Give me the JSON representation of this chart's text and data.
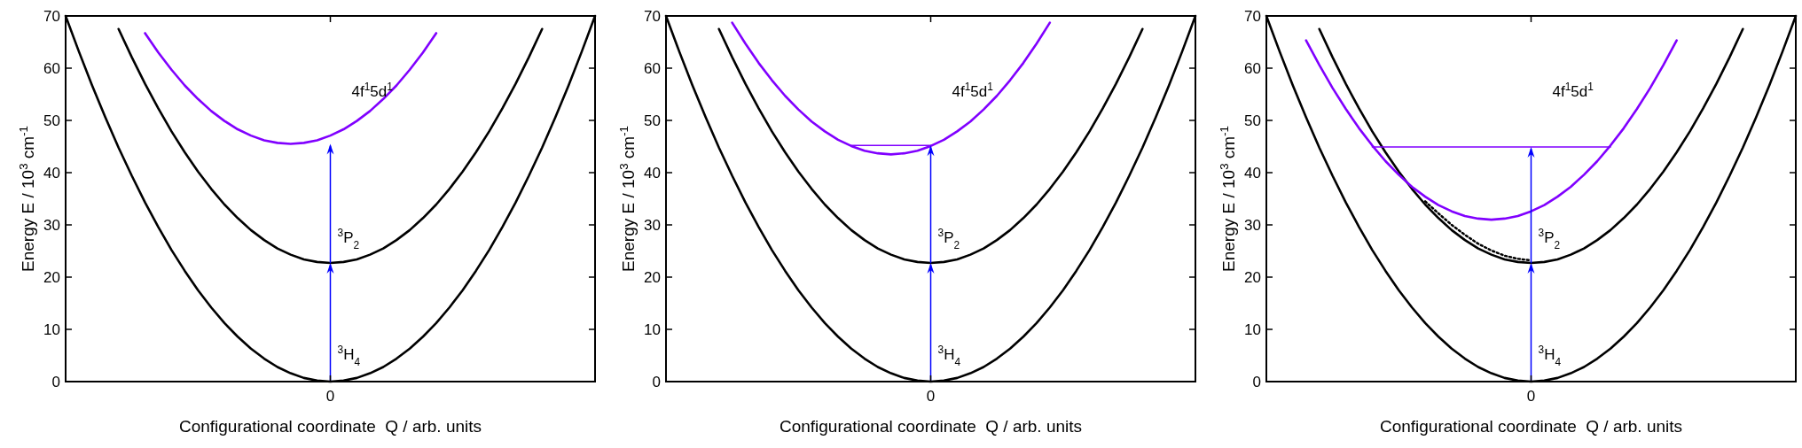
{
  "chart_data": [
    {
      "type": "line",
      "categories": [
        null,
        null,
        null,
        null,
        null,
        null,
        null,
        null,
        null,
        null,
        null,
        null,
        null,
        null,
        null,
        null,
        null,
        null,
        null,
        null,
        "0",
        null,
        null,
        null,
        null,
        null,
        null,
        null,
        null,
        null,
        null,
        null,
        null,
        null,
        null,
        null,
        null,
        null,
        null,
        null,
        null
      ],
      "series": [
        {
          "color": "#000000",
          "values": [
            70,
            63.2,
            56.7,
            50.6,
            44.8,
            39.4,
            34.3,
            29.6,
            25.2,
            21.2,
            17.5,
            14.2,
            11.2,
            8.6,
            6.3,
            4.4,
            2.8,
            1.6,
            0.7,
            0.2,
            0,
            0.2,
            0.7,
            1.6,
            2.8,
            4.4,
            6.3,
            8.6,
            11.2,
            14.2,
            17.5,
            21.2,
            25.2,
            29.6,
            34.3,
            39.4,
            44.8,
            50.6,
            56.7,
            63.2,
            70
          ]
        },
        {
          "color": "#000000",
          "values": [
            null,
            null,
            null,
            null,
            67.5,
            62.1,
            57.0,
            52.3,
            47.9,
            43.9,
            40.2,
            36.9,
            33.9,
            31.3,
            29.0,
            27.1,
            25.5,
            24.3,
            23.4,
            22.9,
            22.7,
            22.9,
            23.4,
            24.3,
            25.5,
            27.1,
            29.0,
            31.3,
            33.9,
            36.9,
            40.2,
            43.9,
            47.9,
            52.3,
            57.0,
            62.1,
            67.5,
            null,
            null,
            null,
            null
          ]
        },
        {
          "color": "#8000ff",
          "values": [
            null,
            null,
            null,
            null,
            null,
            null,
            66.7,
            63.0,
            59.7,
            56.7,
            54.1,
            51.8,
            49.9,
            48.3,
            47.1,
            46.2,
            45.7,
            45.5,
            45.7,
            46.2,
            47.1,
            48.3,
            49.9,
            51.8,
            54.1,
            56.7,
            59.7,
            63.0,
            66.7,
            null,
            null,
            null,
            null,
            null,
            null,
            null,
            null,
            null,
            null,
            null,
            null
          ]
        }
      ],
      "ylim": [
        0,
        70
      ],
      "yticks": [
        0,
        10,
        20,
        30,
        40,
        50,
        60,
        70
      ],
      "xlabel": "Configurational coordinate  Q / arb. units",
      "ylabel": "Energy E / 10$^{3}$ cm$^{-1}$",
      "annotations": [
        "$^{3}$H$_{4}$",
        "$^{3}$P$_{2}$",
        "4f$^{1}$5d$^{1}$"
      ]
    },
    {
      "type": "line",
      "categories": [
        null,
        null,
        null,
        null,
        null,
        null,
        null,
        null,
        null,
        null,
        null,
        null,
        null,
        null,
        null,
        null,
        null,
        null,
        null,
        null,
        "0",
        null,
        null,
        null,
        null,
        null,
        null,
        null,
        null,
        null,
        null,
        null,
        null,
        null,
        null,
        null,
        null,
        null,
        null,
        null,
        null
      ],
      "series": [
        {
          "color": "#000000",
          "values": [
            70,
            63.2,
            56.7,
            50.6,
            44.8,
            39.4,
            34.3,
            29.6,
            25.2,
            21.2,
            17.5,
            14.2,
            11.2,
            8.6,
            6.3,
            4.4,
            2.8,
            1.6,
            0.7,
            0.2,
            0,
            0.2,
            0.7,
            1.6,
            2.8,
            4.4,
            6.3,
            8.6,
            11.2,
            14.2,
            17.5,
            21.2,
            25.2,
            29.6,
            34.3,
            39.4,
            44.8,
            50.6,
            56.7,
            63.2,
            70
          ]
        },
        {
          "color": "#000000",
          "values": [
            null,
            null,
            null,
            null,
            67.5,
            62.1,
            57.0,
            52.3,
            47.9,
            43.9,
            40.2,
            36.9,
            33.9,
            31.3,
            29.0,
            27.1,
            25.5,
            24.3,
            23.4,
            22.9,
            22.7,
            22.9,
            23.4,
            24.3,
            25.5,
            27.1,
            29.0,
            31.3,
            33.9,
            36.9,
            40.2,
            43.9,
            47.9,
            52.3,
            57.0,
            62.1,
            67.5,
            null,
            null,
            null,
            null
          ]
        },
        {
          "color": "#8000ff",
          "values": [
            null,
            null,
            null,
            null,
            null,
            68.7,
            64.7,
            61.0,
            57.7,
            54.7,
            52.1,
            49.8,
            47.9,
            46.3,
            45.1,
            44.2,
            43.7,
            43.5,
            43.7,
            44.2,
            45.1,
            46.3,
            47.9,
            49.8,
            52.1,
            54.7,
            57.7,
            61.0,
            64.7,
            68.7,
            null,
            null,
            null,
            null,
            null,
            null,
            null,
            null,
            null,
            null,
            null
          ]
        },
        {
          "color": "#8000ff",
          "values": [
            null,
            null,
            null,
            null,
            null,
            null,
            null,
            null,
            null,
            null,
            null,
            null,
            null,
            null,
            45.2,
            45.2,
            45.2,
            45.2,
            45.2,
            45.2,
            45.2,
            null,
            null,
            null,
            null,
            null,
            null,
            null,
            null,
            null,
            null,
            null,
            null,
            null,
            null,
            null,
            null,
            null,
            null,
            null,
            null
          ]
        }
      ],
      "ylim": [
        0,
        70
      ],
      "yticks": [
        0,
        10,
        20,
        30,
        40,
        50,
        60,
        70
      ],
      "xlabel": "Configurational coordinate  Q / arb. units",
      "ylabel": "Energy E / 10$^{3}$ cm$^{-1}$",
      "annotations": [
        "$^{3}$H$_{4}$",
        "$^{3}$P$_{2}$",
        "4f$^{1}$5d$^{1}$"
      ]
    },
    {
      "type": "line",
      "categories": [
        null,
        null,
        null,
        null,
        null,
        null,
        null,
        null,
        null,
        null,
        null,
        null,
        null,
        null,
        null,
        null,
        null,
        null,
        null,
        null,
        "0",
        null,
        null,
        null,
        null,
        null,
        null,
        null,
        null,
        null,
        null,
        null,
        null,
        null,
        null,
        null,
        null,
        null,
        null,
        null,
        null
      ],
      "series": [
        {
          "color": "#000000",
          "values": [
            70,
            63.2,
            56.7,
            50.6,
            44.8,
            39.4,
            34.3,
            29.6,
            25.2,
            21.2,
            17.5,
            14.2,
            11.2,
            8.6,
            6.3,
            4.4,
            2.8,
            1.6,
            0.7,
            0.2,
            0,
            0.2,
            0.7,
            1.6,
            2.8,
            4.4,
            6.3,
            8.6,
            11.2,
            14.2,
            17.5,
            21.2,
            25.2,
            29.6,
            34.3,
            39.4,
            44.8,
            50.6,
            56.7,
            63.2,
            70
          ]
        },
        {
          "color": "#000000",
          "values": [
            null,
            null,
            null,
            null,
            67.5,
            62.1,
            57.0,
            52.3,
            47.9,
            43.9,
            40.2,
            36.9,
            33.9,
            31.3,
            29.0,
            27.1,
            25.5,
            24.3,
            23.4,
            22.9,
            22.7,
            22.9,
            23.4,
            24.3,
            25.5,
            27.1,
            29.0,
            31.3,
            33.9,
            36.9,
            40.2,
            43.9,
            47.9,
            52.3,
            57.0,
            62.1,
            67.5,
            null,
            null,
            null,
            null
          ]
        },
        {
          "color": "#8000ff",
          "values": [
            null,
            null,
            null,
            65.3,
            60.6,
            56.2,
            52.2,
            48.5,
            45.2,
            42.2,
            39.6,
            37.3,
            35.4,
            33.8,
            32.6,
            31.7,
            31.2,
            31.0,
            31.2,
            31.7,
            32.6,
            33.8,
            35.4,
            37.3,
            39.6,
            42.2,
            45.2,
            48.5,
            52.2,
            56.2,
            60.6,
            65.3,
            null,
            null,
            null,
            null,
            null,
            null,
            null,
            null,
            null
          ]
        },
        {
          "color": "#8000ff",
          "values": [
            null,
            null,
            null,
            null,
            null,
            null,
            null,
            null,
            44.9,
            44.9,
            44.9,
            44.9,
            44.9,
            44.9,
            44.9,
            44.9,
            44.9,
            44.9,
            44.9,
            44.9,
            44.9,
            44.9,
            44.9,
            44.9,
            44.9,
            44.9,
            44.9,
            null,
            null,
            null,
            null,
            null,
            null,
            null,
            null,
            null,
            null,
            null,
            null,
            null,
            null
          ]
        },
        {
          "color": "#000000",
          "line_style": "dotted",
          "values": [
            null,
            null,
            null,
            null,
            null,
            null,
            null,
            null,
            null,
            null,
            null,
            null,
            34.5,
            32.2,
            30.0,
            28.1,
            26.4,
            25.1,
            24.1,
            23.5,
            23.2,
            null,
            null,
            null,
            null,
            null,
            null,
            null,
            null,
            null,
            null,
            null,
            null,
            null,
            null,
            null,
            null,
            null,
            null,
            null,
            null
          ]
        }
      ],
      "ylim": [
        0,
        70
      ],
      "yticks": [
        0,
        10,
        20,
        30,
        40,
        50,
        60,
        70
      ],
      "xlabel": "Configurational coordinate  Q / arb. units",
      "ylabel": "Energy E / 10$^{3}$ cm$^{-1}$",
      "annotations": [
        "$^{3}$H$_{4}$",
        "$^{3}$P$_{2}$",
        "4f$^{1}$5d$^{1}$"
      ]
    }
  ]
}
